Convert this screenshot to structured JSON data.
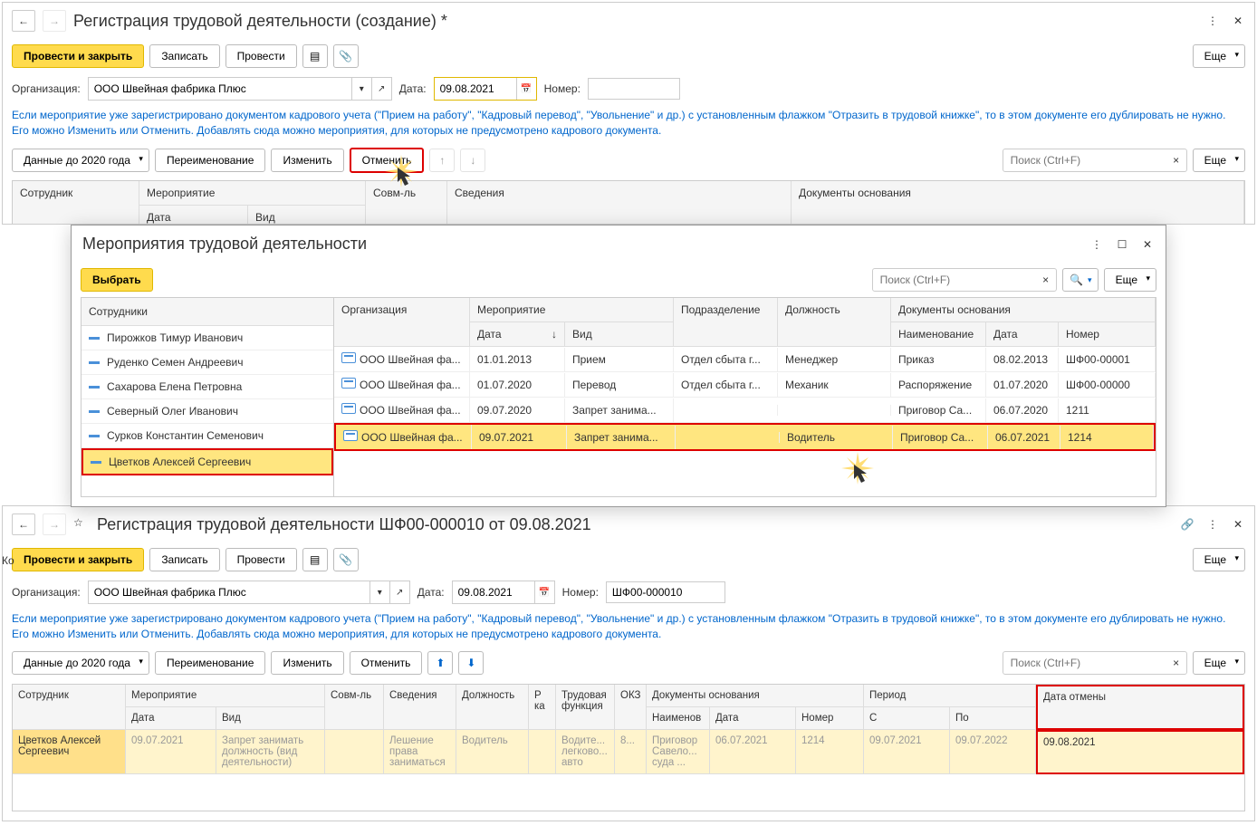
{
  "win1": {
    "title": "Регистрация трудовой деятельности (создание) *",
    "toolbar": {
      "postClose": "Провести и закрыть",
      "write": "Записать",
      "post": "Провести",
      "more": "Еще"
    },
    "form": {
      "org_label": "Организация:",
      "org_value": "ООО Швейная фабрика Плюс",
      "date_label": "Дата:",
      "date_value": "09.08.2021",
      "num_label": "Номер:",
      "num_value": ""
    },
    "info": "Если мероприятие уже зарегистрировано документом кадрового учета (\"Прием на работу\", \"Кадровый перевод\", \"Увольнение\" и др.) с установленным флажком \"Отразить в трудовой книжке\", то в этом документе его дублировать не нужно. Его можно Изменить или Отменить. Добавлять сюда можно мероприятия, для которых не предусмотрено кадрового документа.",
    "tb2": {
      "before2020": "Данные до 2020 года",
      "rename": "Переименование",
      "edit": "Изменить",
      "cancel": "Отменить",
      "search_ph": "Поиск (Ctrl+F)",
      "more": "Еще"
    },
    "grid": {
      "cols": {
        "emp": "Сотрудник",
        "event": "Мероприятие",
        "date": "Дата",
        "type": "Вид",
        "compat": "Совм-ль",
        "info": "Сведения",
        "basis": "Документы основания"
      }
    }
  },
  "win2": {
    "title": "Мероприятия трудовой деятельности",
    "select": "Выбрать",
    "search_ph": "Поиск (Ctrl+F)",
    "more": "Еще",
    "emp_header": "Сотрудники",
    "employees": [
      {
        "name": "Пирожков Тимур Иванович"
      },
      {
        "name": "Руденко Семен Андреевич"
      },
      {
        "name": "Сахарова Елена Петровна"
      },
      {
        "name": "Северный Олег Иванович"
      },
      {
        "name": "Сурков Константин Семенович"
      },
      {
        "name": "Цветков Алексей Сергеевич"
      }
    ],
    "cols": {
      "org": "Организация",
      "event": "Мероприятие",
      "date": "Дата",
      "type": "Вид",
      "dept": "Подразделение",
      "pos": "Должность",
      "basis": "Документы основания",
      "bname": "Наименование",
      "bdate": "Дата",
      "bnum": "Номер"
    },
    "rows": [
      {
        "org": "ООО Швейная фа...",
        "date": "01.01.2013",
        "type": "Прием",
        "dept": "Отдел сбыта г...",
        "pos": "Менеджер",
        "bname": "Приказ",
        "bdate": "08.02.2013",
        "bnum": "ШФ00-00001"
      },
      {
        "org": "ООО Швейная фа...",
        "date": "01.07.2020",
        "type": "Перевод",
        "dept": "Отдел сбыта г...",
        "pos": "Механик",
        "bname": "Распоряжение",
        "bdate": "01.07.2020",
        "bnum": "ШФ00-00000"
      },
      {
        "org": "ООО Швейная фа...",
        "date": "09.07.2020",
        "type": "Запрет занима...",
        "dept": "",
        "pos": "",
        "bname": "Приговор Са...",
        "bdate": "06.07.2020",
        "bnum": "1211"
      },
      {
        "org": "ООО Швейная фа...",
        "date": "09.07.2021",
        "type": "Запрет занима...",
        "dept": "",
        "pos": "Водитель",
        "bname": "Приговор Са...",
        "bdate": "06.07.2021",
        "bnum": "1214"
      }
    ]
  },
  "win3": {
    "title": "Регистрация трудовой деятельности ШФ00-000010 от 09.08.2021",
    "toolbar": {
      "postClose": "Провести и закрыть",
      "write": "Записать",
      "post": "Провести",
      "more": "Еще"
    },
    "form": {
      "org_label": "Организация:",
      "org_value": "ООО Швейная фабрика Плюс",
      "date_label": "Дата:",
      "date_value": "09.08.2021",
      "num_label": "Номер:",
      "num_value": "ШФ00-000010"
    },
    "info": "Если мероприятие уже зарегистрировано документом кадрового учета (\"Прием на работу\", \"Кадровый перевод\", \"Увольнение\" и др.) с установленным флажком \"Отразить в трудовой книжке\", то в этом документе его дублировать не нужно. Его можно Изменить или Отменить. Добавлять сюда можно мероприятия, для которых не предусмотрено кадрового документа.",
    "tb2": {
      "before2020": "Данные до 2020 года",
      "rename": "Переименование",
      "edit": "Изменить",
      "cancel": "Отменить",
      "search_ph": "Поиск (Ctrl+F)",
      "more": "Еще"
    },
    "cols": {
      "emp": "Сотрудник",
      "event": "Мероприятие",
      "date": "Дата",
      "type": "Вид",
      "compat": "Совм-ль",
      "info": "Сведения",
      "pos": "Должность",
      "rka": "Р ка",
      "func": "Трудовая функция",
      "okz": "ОКЗ",
      "basis": "Документы основания",
      "bname": "Наименов",
      "bdate": "Дата",
      "bnum": "Номер",
      "period": "Период",
      "pfrom": "С",
      "pto": "По",
      "cancelDate": "Дата отмены"
    },
    "row": {
      "emp": "Цветков Алексей Сергеевич",
      "date": "09.07.2021",
      "type": "Запрет занимать должность (вид деятельности)",
      "compat": "",
      "info": "Лешение права заниматься",
      "pos": "Водитель",
      "rka": "",
      "func": "Водите... легково... авто",
      "okz": "8...",
      "bname": "Приговор Савело... суда ...",
      "bdate": "06.07.2021",
      "bnum": "1214",
      "pfrom": "09.07.2021",
      "pto": "09.07.2022",
      "cancelDate": "09.08.2021"
    }
  },
  "sidebar_snip": "Ко"
}
